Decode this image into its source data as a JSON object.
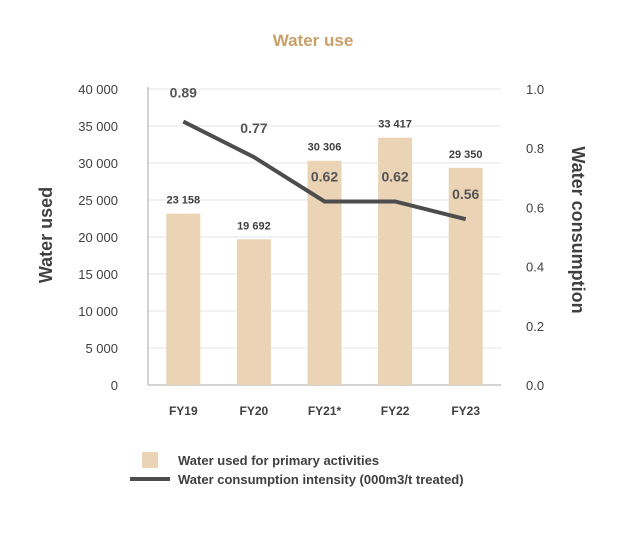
{
  "chart_data": {
    "type": "bar+line",
    "title": "Water use",
    "categories": [
      "FY19",
      "FY20",
      "FY21*",
      "FY22",
      "FY23"
    ],
    "series": [
      {
        "name": "Water used for primary activities",
        "type": "bar",
        "axis": "left",
        "values": [
          23158,
          19692,
          30306,
          33417,
          29350
        ],
        "labels": [
          "23 158",
          "19 692",
          "30 306",
          "33 417",
          "29 350"
        ]
      },
      {
        "name": "Water consumption intensity (000m3/t treated)",
        "type": "line",
        "axis": "right",
        "values": [
          0.89,
          0.77,
          0.62,
          0.62,
          0.56
        ],
        "labels": [
          "0.89",
          "0.77",
          "0.62",
          "0.62",
          "0.56"
        ]
      }
    ],
    "ylabel": "Water used",
    "y2label": "Water consumption",
    "ylim": [
      0,
      40000
    ],
    "y2lim": [
      0,
      1.0
    ],
    "yticks": [
      "0",
      "5 000",
      "10 000",
      "15 000",
      "20 000",
      "25 000",
      "30 000",
      "35 000",
      "40 000"
    ],
    "y2ticks": [
      "0.0",
      "0.2",
      "0.4",
      "0.6",
      "0.8",
      "1.0"
    ],
    "grid": true,
    "legend": "bottom",
    "colors": {
      "bar": "#ebd3b5",
      "line": "#4d4d4d",
      "title": "#c9a06a",
      "text": "#404040",
      "grid": "#e6e6e6"
    }
  }
}
